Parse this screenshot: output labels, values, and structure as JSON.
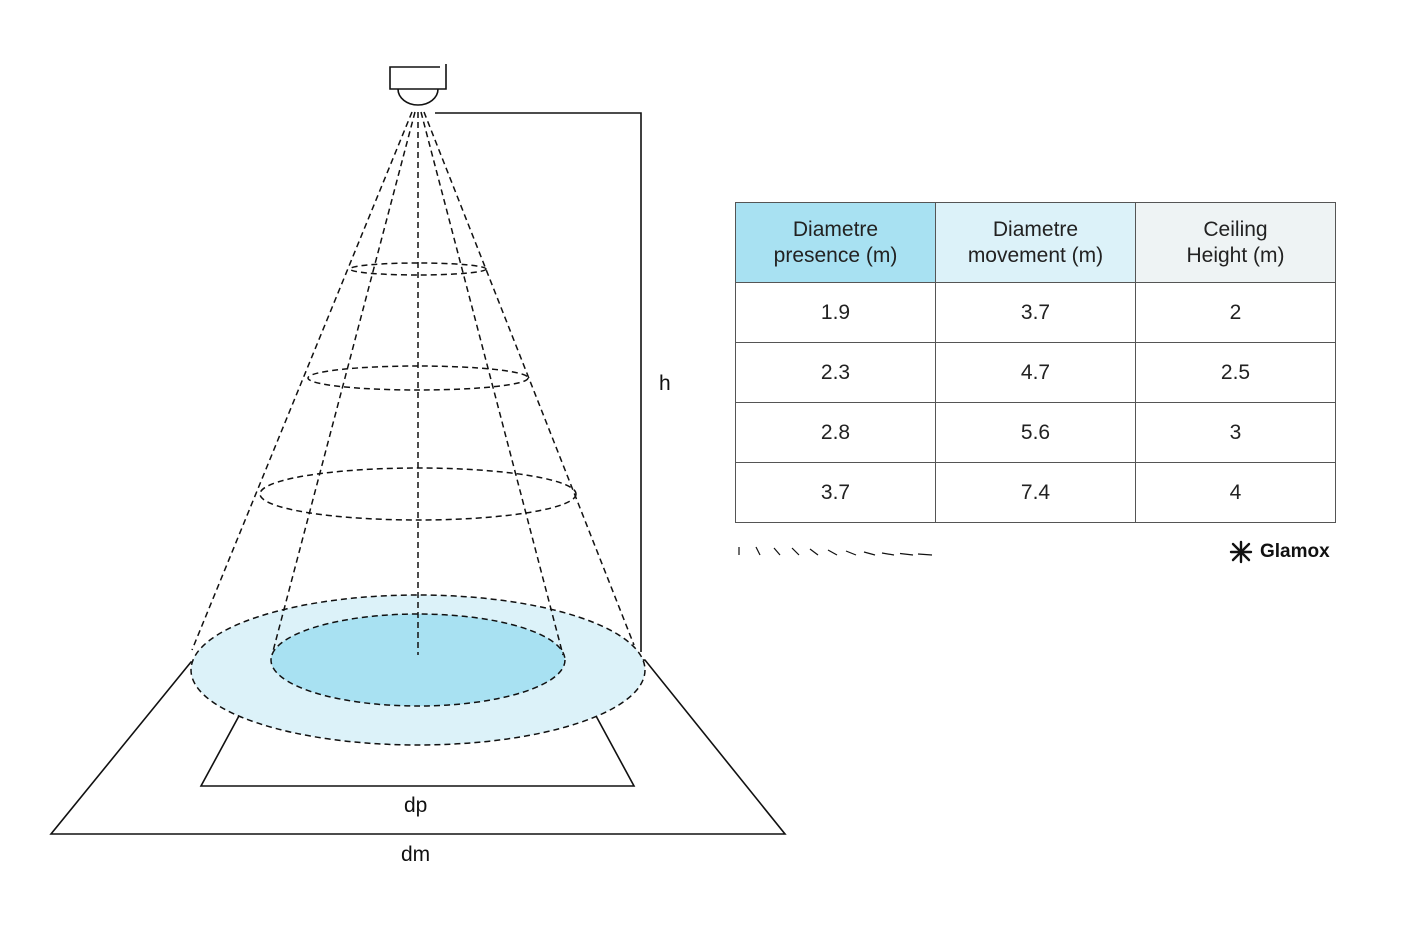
{
  "labels": {
    "h": "h",
    "dp": "dp",
    "dm": "dm"
  },
  "table": {
    "headers": [
      {
        "line1": "Diametre",
        "line2": "presence (m)",
        "color": "#a8e1f2"
      },
      {
        "line1": "Diametre",
        "line2": "movement (m)",
        "color": "#dcf2f9"
      },
      {
        "line1": "Ceiling",
        "line2": "Height (m)",
        "color": "#eef3f4"
      }
    ],
    "rows": [
      [
        "1.9",
        "3.7",
        "2"
      ],
      [
        "2.3",
        "4.7",
        "2.5"
      ],
      [
        "2.8",
        "5.6",
        "3"
      ],
      [
        "3.7",
        "7.4",
        "4"
      ]
    ]
  },
  "logo": {
    "text": "Glamox"
  },
  "colors": {
    "presence": "#a8e1f2",
    "movement": "#dcf2f9",
    "line": "#111111"
  }
}
